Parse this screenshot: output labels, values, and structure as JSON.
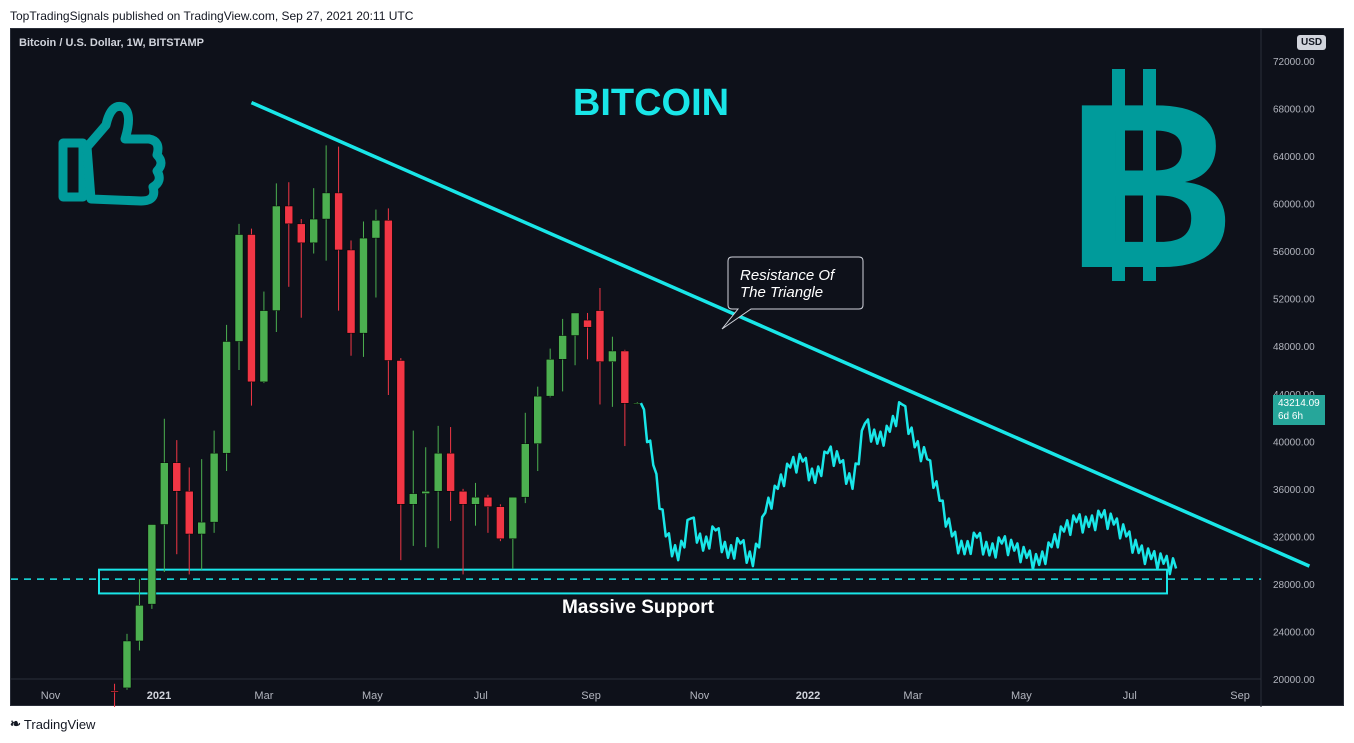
{
  "publisher_line": "TopTradingSignals published on TradingView.com, Sep 27, 2021 20:11 UTC",
  "symbol": "Bitcoin / U.S. Dollar, 1W, BITSTAMP",
  "currency": "USD",
  "last_price": {
    "value": "43214.09",
    "countdown": "6d 6h"
  },
  "footer": "TradingView",
  "annotations": {
    "title": "BITCOIN",
    "callout": [
      "Resistance Of",
      "The Triangle"
    ],
    "support": "Massive Support"
  },
  "colors": {
    "bull": "#26a69a",
    "up_candle": "#4caf50",
    "down_candle": "#f23645",
    "accent": "#19e6e8",
    "teal_logo": "#009b9b"
  },
  "chart_data": {
    "type": "candlestick",
    "title": "",
    "y_ticks": [
      20000,
      24000,
      28000,
      32000,
      36000,
      40000,
      44000,
      48000,
      52000,
      56000,
      60000,
      64000,
      68000,
      72000
    ],
    "y_tick_labels": [
      "20000.00",
      "24000.00",
      "28000.00",
      "32000.00",
      "36000.00",
      "40000.00",
      "44000.00",
      "48000.00",
      "52000.00",
      "56000.00",
      "60000.00",
      "64000.00",
      "68000.00",
      "72000.00"
    ],
    "ylim": [
      20000,
      73000
    ],
    "x_tick_labels": [
      "Nov",
      "2021",
      "Mar",
      "May",
      "Jul",
      "Sep",
      "Nov",
      "2022",
      "Mar",
      "May",
      "Jul",
      "Sep"
    ],
    "x_tick_dates": [
      "2020-11-01",
      "2021-01-01",
      "2021-03-01",
      "2021-05-01",
      "2021-07-01",
      "2021-09-01",
      "2021-11-01",
      "2022-01-01",
      "2022-03-01",
      "2022-05-01",
      "2022-07-01",
      "2022-09-01"
    ],
    "candles": [
      {
        "date": "2020-12-07",
        "o": 19000,
        "h": 19600,
        "l": 17600,
        "c": 18900
      },
      {
        "date": "2020-12-14",
        "o": 19250,
        "h": 23800,
        "l": 19100,
        "c": 23200
      },
      {
        "date": "2020-12-21",
        "o": 23200,
        "h": 28400,
        "l": 22400,
        "c": 26200
      },
      {
        "date": "2020-12-28",
        "o": 26300,
        "h": 33000,
        "l": 25900,
        "c": 33000
      },
      {
        "date": "2021-01-04",
        "o": 33000,
        "h": 41900,
        "l": 29000,
        "c": 38200
      },
      {
        "date": "2021-01-11",
        "o": 38200,
        "h": 40100,
        "l": 30500,
        "c": 35800
      },
      {
        "date": "2021-01-18",
        "o": 35800,
        "h": 37800,
        "l": 28800,
        "c": 32200
      },
      {
        "date": "2021-01-25",
        "o": 32200,
        "h": 38500,
        "l": 29200,
        "c": 33200
      },
      {
        "date": "2021-02-01",
        "o": 33200,
        "h": 40900,
        "l": 32300,
        "c": 39000
      },
      {
        "date": "2021-02-08",
        "o": 39000,
        "h": 49800,
        "l": 37500,
        "c": 48400
      },
      {
        "date": "2021-02-15",
        "o": 48400,
        "h": 58300,
        "l": 46000,
        "c": 57400
      },
      {
        "date": "2021-02-22",
        "o": 57400,
        "h": 57900,
        "l": 43000,
        "c": 45000
      },
      {
        "date": "2021-03-01",
        "o": 45000,
        "h": 52600,
        "l": 44900,
        "c": 51000
      },
      {
        "date": "2021-03-08",
        "o": 51000,
        "h": 61700,
        "l": 49200,
        "c": 59800
      },
      {
        "date": "2021-03-15",
        "o": 59800,
        "h": 61800,
        "l": 53000,
        "c": 58300
      },
      {
        "date": "2021-03-22",
        "o": 58300,
        "h": 58700,
        "l": 50400,
        "c": 56700
      },
      {
        "date": "2021-03-29",
        "o": 56700,
        "h": 61300,
        "l": 55800,
        "c": 58700
      },
      {
        "date": "2021-04-05",
        "o": 58700,
        "h": 64900,
        "l": 55200,
        "c": 60900
      },
      {
        "date": "2021-04-12",
        "o": 60900,
        "h": 64800,
        "l": 51000,
        "c": 56100
      },
      {
        "date": "2021-04-19",
        "o": 56100,
        "h": 56900,
        "l": 47200,
        "c": 49100
      },
      {
        "date": "2021-04-26",
        "o": 49100,
        "h": 58500,
        "l": 47100,
        "c": 57100
      },
      {
        "date": "2021-05-03",
        "o": 57100,
        "h": 59500,
        "l": 52100,
        "c": 58600
      },
      {
        "date": "2021-05-10",
        "o": 58600,
        "h": 59600,
        "l": 43900,
        "c": 46800
      },
      {
        "date": "2021-05-17",
        "o": 46800,
        "h": 47000,
        "l": 30000,
        "c": 34700
      },
      {
        "date": "2021-05-24",
        "o": 34700,
        "h": 40900,
        "l": 31200,
        "c": 35600
      },
      {
        "date": "2021-05-31",
        "o": 35600,
        "h": 39500,
        "l": 31100,
        "c": 35800
      },
      {
        "date": "2021-06-07",
        "o": 35800,
        "h": 41300,
        "l": 31000,
        "c": 39000
      },
      {
        "date": "2021-06-14",
        "o": 39000,
        "h": 41200,
        "l": 33300,
        "c": 35800
      },
      {
        "date": "2021-06-21",
        "o": 35800,
        "h": 36000,
        "l": 28800,
        "c": 34700
      },
      {
        "date": "2021-06-28",
        "o": 34700,
        "h": 36500,
        "l": 32900,
        "c": 35300
      },
      {
        "date": "2021-07-05",
        "o": 35300,
        "h": 35500,
        "l": 32300,
        "c": 34500
      },
      {
        "date": "2021-07-12",
        "o": 34500,
        "h": 34700,
        "l": 31600,
        "c": 31800
      },
      {
        "date": "2021-07-19",
        "o": 31800,
        "h": 35300,
        "l": 29300,
        "c": 35300
      },
      {
        "date": "2021-07-26",
        "o": 35300,
        "h": 42400,
        "l": 34800,
        "c": 39800
      },
      {
        "date": "2021-08-02",
        "o": 39800,
        "h": 44600,
        "l": 37500,
        "c": 43800
      },
      {
        "date": "2021-08-09",
        "o": 43800,
        "h": 47800,
        "l": 43700,
        "c": 46900
      },
      {
        "date": "2021-08-16",
        "o": 46900,
        "h": 50300,
        "l": 44200,
        "c": 48900
      },
      {
        "date": "2021-08-23",
        "o": 48900,
        "h": 50600,
        "l": 46400,
        "c": 50800
      },
      {
        "date": "2021-08-30",
        "o": 50200,
        "h": 50800,
        "l": 46900,
        "c": 49600
      },
      {
        "date": "2021-09-06",
        "o": 51000,
        "h": 52900,
        "l": 43100,
        "c": 46700
      },
      {
        "date": "2021-09-13",
        "o": 46700,
        "h": 48800,
        "l": 42900,
        "c": 47600
      },
      {
        "date": "2021-09-20",
        "o": 47600,
        "h": 47700,
        "l": 39600,
        "c": 43200
      },
      {
        "date": "2021-09-27",
        "o": 43200,
        "h": 43300,
        "l": 43100,
        "c": 43214.09
      }
    ],
    "continuation_line_samples": [
      {
        "date": "2021-09-29",
        "v": 43214
      },
      {
        "date": "2021-10-06",
        "v": 38000
      },
      {
        "date": "2021-10-13",
        "v": 32000
      },
      {
        "date": "2021-10-20",
        "v": 30000
      },
      {
        "date": "2021-10-27",
        "v": 33500
      },
      {
        "date": "2021-11-03",
        "v": 30800
      },
      {
        "date": "2021-11-10",
        "v": 32500
      },
      {
        "date": "2021-11-17",
        "v": 30200
      },
      {
        "date": "2021-11-24",
        "v": 31400
      },
      {
        "date": "2021-12-01",
        "v": 29500
      },
      {
        "date": "2021-12-08",
        "v": 34000
      },
      {
        "date": "2021-12-15",
        "v": 36000
      },
      {
        "date": "2021-12-22",
        "v": 37800
      },
      {
        "date": "2021-12-29",
        "v": 38300
      },
      {
        "date": "2022-01-05",
        "v": 36500
      },
      {
        "date": "2022-01-12",
        "v": 39000
      },
      {
        "date": "2022-01-19",
        "v": 38200
      },
      {
        "date": "2022-01-26",
        "v": 36000
      },
      {
        "date": "2022-02-02",
        "v": 41500
      },
      {
        "date": "2022-02-09",
        "v": 39800
      },
      {
        "date": "2022-02-16",
        "v": 40800
      },
      {
        "date": "2022-02-23",
        "v": 43100
      },
      {
        "date": "2022-03-02",
        "v": 39500
      },
      {
        "date": "2022-03-09",
        "v": 38500
      },
      {
        "date": "2022-03-16",
        "v": 35000
      },
      {
        "date": "2022-03-23",
        "v": 32000
      },
      {
        "date": "2022-03-30",
        "v": 30500
      },
      {
        "date": "2022-04-06",
        "v": 31900
      },
      {
        "date": "2022-04-13",
        "v": 30400
      },
      {
        "date": "2022-04-20",
        "v": 31400
      },
      {
        "date": "2022-04-27",
        "v": 30800
      },
      {
        "date": "2022-05-04",
        "v": 30200
      },
      {
        "date": "2022-05-11",
        "v": 29600
      },
      {
        "date": "2022-05-18",
        "v": 31100
      },
      {
        "date": "2022-05-25",
        "v": 32400
      },
      {
        "date": "2022-06-01",
        "v": 33200
      },
      {
        "date": "2022-06-08",
        "v": 32800
      },
      {
        "date": "2022-06-15",
        "v": 33600
      },
      {
        "date": "2022-06-22",
        "v": 33000
      },
      {
        "date": "2022-06-29",
        "v": 32000
      },
      {
        "date": "2022-07-06",
        "v": 30600
      },
      {
        "date": "2022-07-13",
        "v": 30100
      },
      {
        "date": "2022-07-20",
        "v": 29700
      },
      {
        "date": "2022-07-27",
        "v": 29300
      }
    ],
    "trendline": {
      "from": {
        "date": "2021-02-22",
        "v": 68500
      },
      "to": {
        "date": "2022-10-10",
        "v": 29500
      }
    },
    "support_zone": [
      27200,
      29200
    ],
    "support_level": 28400
  }
}
